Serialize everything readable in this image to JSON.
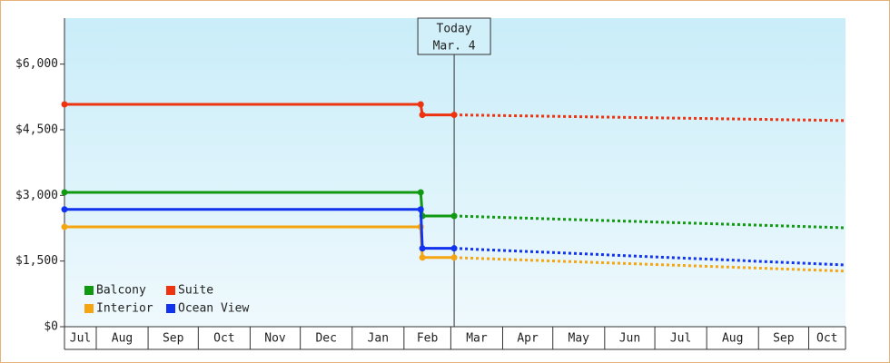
{
  "chart_data": {
    "type": "line",
    "ylim": [
      0,
      7050
    ],
    "yticks": [
      {
        "value": 0,
        "label": "$0"
      },
      {
        "value": 1500,
        "label": "$1,500"
      },
      {
        "value": 3000,
        "label": "$3,000"
      },
      {
        "value": 4500,
        "label": "$4,500"
      },
      {
        "value": 6000,
        "label": "$6,000"
      }
    ],
    "xlim": [
      -19,
      448
    ],
    "xticks": [
      {
        "value": -31,
        "label": "Jul"
      },
      {
        "value": 0,
        "label": "Aug"
      },
      {
        "value": 31,
        "label": "Sep"
      },
      {
        "value": 61,
        "label": "Oct"
      },
      {
        "value": 92,
        "label": "Nov"
      },
      {
        "value": 122,
        "label": "Dec"
      },
      {
        "value": 153,
        "label": "Jan"
      },
      {
        "value": 184,
        "label": "Feb"
      },
      {
        "value": 212,
        "label": "Mar"
      },
      {
        "value": 243,
        "label": "Apr"
      },
      {
        "value": 273,
        "label": "May"
      },
      {
        "value": 304,
        "label": "Jun"
      },
      {
        "value": 334,
        "label": "Jul"
      },
      {
        "value": 365,
        "label": "Aug"
      },
      {
        "value": 396,
        "label": "Sep"
      },
      {
        "value": 426,
        "label": "Oct"
      }
    ],
    "annotation": {
      "x": 214,
      "lines": [
        "Today",
        "Mar. 4"
      ]
    },
    "legend": "bottom-left",
    "series": [
      {
        "name": "Balcony",
        "color": "#119911",
        "x": [
          -19,
          194,
          195,
          214
        ],
        "values": [
          3070,
          3070,
          2530,
          2530
        ],
        "forecast": {
          "x": [
            214,
            448
          ],
          "values": [
            2530,
            2260
          ]
        }
      },
      {
        "name": "Suite",
        "color": "#ee3311",
        "x": [
          -19,
          194,
          195,
          214
        ],
        "values": [
          5080,
          5080,
          4840,
          4840
        ],
        "forecast": {
          "x": [
            214,
            448
          ],
          "values": [
            4840,
            4710
          ]
        }
      },
      {
        "name": "Interior",
        "color": "#f5a511",
        "x": [
          -19,
          194,
          195,
          214
        ],
        "values": [
          2280,
          2280,
          1580,
          1580
        ],
        "forecast": {
          "x": [
            214,
            448
          ],
          "values": [
            1580,
            1270
          ]
        }
      },
      {
        "name": "Ocean View",
        "color": "#1133ee",
        "x": [
          -19,
          194,
          195,
          214
        ],
        "values": [
          2680,
          2680,
          1790,
          1790
        ],
        "forecast": {
          "x": [
            214,
            448
          ],
          "values": [
            1790,
            1410
          ]
        }
      }
    ]
  }
}
